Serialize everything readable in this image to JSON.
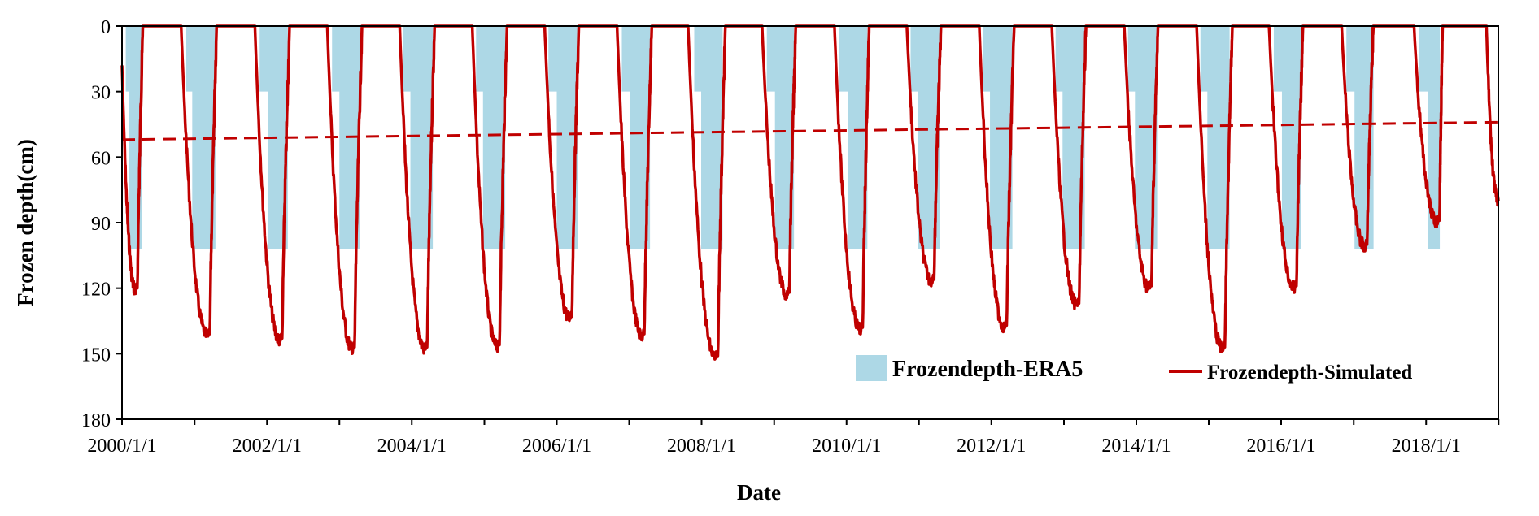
{
  "chart_data": {
    "type": "area",
    "title": "",
    "xlabel": "Date",
    "ylabel": "Frozen depth(cm)",
    "y_inverted": true,
    "ylim": [
      0,
      180
    ],
    "xlim": [
      "2000/1/1",
      "2018/12/31"
    ],
    "y_ticks": [
      0,
      30,
      60,
      90,
      120,
      150,
      180
    ],
    "x_ticks": [
      "2000/1/1",
      "2002/1/1",
      "2004/1/1",
      "2006/1/1",
      "2008/1/1",
      "2010/1/1",
      "2012/1/1",
      "2014/1/1",
      "2016/1/1",
      "2018/1/1"
    ],
    "legend_position": "bottom-right",
    "colors": {
      "era5": "#add8e6",
      "simulated": "#c00000",
      "trend": "#c00000"
    },
    "series": [
      {
        "name": "Frozendepth-ERA5",
        "kind": "step-area",
        "points": [
          [
            "2000/1/1",
            0
          ],
          [
            "2000/1/20",
            30
          ],
          [
            "2000/2/5",
            102
          ],
          [
            "2000/4/10",
            102
          ],
          [
            "2000/4/11",
            0
          ],
          [
            "2000/11/1",
            0
          ],
          [
            "2000/11/20",
            30
          ],
          [
            "2000/12/20",
            102
          ],
          [
            "2001/4/15",
            102
          ],
          [
            "2001/4/16",
            0
          ],
          [
            "2001/11/1",
            0
          ],
          [
            "2001/11/25",
            30
          ],
          [
            "2002/1/5",
            102
          ],
          [
            "2002/4/15",
            102
          ],
          [
            "2002/4/16",
            0
          ],
          [
            "2002/11/1",
            0
          ],
          [
            "2002/11/25",
            30
          ],
          [
            "2003/1/1",
            102
          ],
          [
            "2003/4/15",
            102
          ],
          [
            "2003/4/16",
            0
          ],
          [
            "2003/11/1",
            0
          ],
          [
            "2003/11/20",
            30
          ],
          [
            "2003/12/25",
            102
          ],
          [
            "2004/4/15",
            102
          ],
          [
            "2004/4/16",
            0
          ],
          [
            "2004/11/1",
            0
          ],
          [
            "2004/11/20",
            30
          ],
          [
            "2004/12/25",
            102
          ],
          [
            "2005/4/15",
            102
          ],
          [
            "2005/4/16",
            0
          ],
          [
            "2005/11/1",
            0
          ],
          [
            "2005/11/20",
            30
          ],
          [
            "2006/1/1",
            102
          ],
          [
            "2006/4/15",
            102
          ],
          [
            "2006/4/16",
            0
          ],
          [
            "2006/11/1",
            0
          ],
          [
            "2006/11/25",
            30
          ],
          [
            "2007/1/5",
            102
          ],
          [
            "2007/4/15",
            102
          ],
          [
            "2007/4/16",
            0
          ],
          [
            "2007/11/1",
            0
          ],
          [
            "2007/11/25",
            30
          ],
          [
            "2007/12/30",
            102
          ],
          [
            "2008/4/15",
            102
          ],
          [
            "2008/4/16",
            0
          ],
          [
            "2008/11/1",
            0
          ],
          [
            "2008/11/25",
            30
          ],
          [
            "2009/1/5",
            102
          ],
          [
            "2009/4/10",
            102
          ],
          [
            "2009/4/11",
            0
          ],
          [
            "2009/11/1",
            0
          ],
          [
            "2009/11/25",
            30
          ],
          [
            "2010/1/10",
            102
          ],
          [
            "2010/4/15",
            102
          ],
          [
            "2010/4/16",
            0
          ],
          [
            "2010/11/1",
            0
          ],
          [
            "2010/11/20",
            30
          ],
          [
            "2010/12/25",
            102
          ],
          [
            "2011/4/15",
            102
          ],
          [
            "2011/4/16",
            0
          ],
          [
            "2011/11/1",
            0
          ],
          [
            "2011/11/20",
            30
          ],
          [
            "2011/12/25",
            102
          ],
          [
            "2012/4/15",
            102
          ],
          [
            "2012/4/16",
            0
          ],
          [
            "2012/11/1",
            0
          ],
          [
            "2012/11/20",
            30
          ],
          [
            "2012/12/25",
            102
          ],
          [
            "2013/4/15",
            102
          ],
          [
            "2013/4/16",
            0
          ],
          [
            "2013/11/1",
            0
          ],
          [
            "2013/11/20",
            30
          ],
          [
            "2013/12/25",
            102
          ],
          [
            "2014/4/15",
            102
          ],
          [
            "2014/4/16",
            0
          ],
          [
            "2014/11/1",
            0
          ],
          [
            "2014/11/20",
            30
          ],
          [
            "2014/12/25",
            102
          ],
          [
            "2015/4/15",
            102
          ],
          [
            "2015/4/16",
            0
          ],
          [
            "2015/11/1",
            0
          ],
          [
            "2015/11/25",
            30
          ],
          [
            "2016/1/5",
            102
          ],
          [
            "2016/4/10",
            102
          ],
          [
            "2016/4/11",
            0
          ],
          [
            "2016/11/1",
            0
          ],
          [
            "2016/11/25",
            30
          ],
          [
            "2017/1/5",
            102
          ],
          [
            "2017/4/10",
            102
          ],
          [
            "2017/4/11",
            0
          ],
          [
            "2017/11/1",
            0
          ],
          [
            "2017/11/25",
            30
          ],
          [
            "2018/1/10",
            102
          ],
          [
            "2018/3/10",
            102
          ],
          [
            "2018/3/11",
            0
          ],
          [
            "2018/12/31",
            0
          ]
        ]
      },
      {
        "name": "Frozendepth-Simulated",
        "kind": "line",
        "seasons": [
          {
            "start": "2000/1/1",
            "start_depth": 18,
            "peak": "2000/3/10",
            "max": 121,
            "end": "2000/4/15"
          },
          {
            "start": "2000/10/25",
            "peak": "2001/3/10",
            "max": 142,
            "end": "2001/4/22"
          },
          {
            "start": "2001/11/1",
            "peak": "2002/3/10",
            "max": 144,
            "end": "2002/4/25"
          },
          {
            "start": "2002/11/1",
            "peak": "2003/3/10",
            "max": 148,
            "end": "2003/4/25"
          },
          {
            "start": "2003/11/1",
            "peak": "2004/3/10",
            "max": 148,
            "end": "2004/4/25"
          },
          {
            "start": "2004/11/1",
            "peak": "2005/3/10",
            "max": 147,
            "end": "2005/4/25"
          },
          {
            "start": "2005/11/1",
            "peak": "2006/3/10",
            "max": 134,
            "end": "2006/4/22"
          },
          {
            "start": "2006/11/1",
            "peak": "2007/3/10",
            "max": 142,
            "end": "2007/4/25"
          },
          {
            "start": "2007/10/25",
            "peak": "2008/3/15",
            "max": 152,
            "end": "2008/4/30"
          },
          {
            "start": "2008/11/1",
            "peak": "2009/3/10",
            "max": 123,
            "end": "2009/4/20"
          },
          {
            "start": "2009/11/1",
            "peak": "2010/3/15",
            "max": 139,
            "end": "2010/4/25"
          },
          {
            "start": "2010/11/1",
            "peak": "2011/3/10",
            "max": 117,
            "end": "2011/4/22"
          },
          {
            "start": "2011/11/1",
            "peak": "2012/3/10",
            "max": 138,
            "end": "2012/4/25"
          },
          {
            "start": "2012/11/1",
            "peak": "2013/3/10",
            "max": 128,
            "end": "2013/4/22"
          },
          {
            "start": "2013/11/1",
            "peak": "2014/3/10",
            "max": 120,
            "end": "2014/4/20"
          },
          {
            "start": "2014/11/1",
            "peak": "2015/3/15",
            "max": 148,
            "end": "2015/4/30"
          },
          {
            "start": "2015/11/1",
            "peak": "2016/3/10",
            "max": 120,
            "end": "2016/4/20"
          },
          {
            "start": "2016/11/1",
            "peak": "2017/3/1",
            "max": 101,
            "end": "2017/4/10"
          },
          {
            "start": "2017/11/1",
            "peak": "2018/3/1",
            "max": 90,
            "end": "2018/3/25"
          },
          {
            "start": "2018/11/1",
            "end_depth": 80,
            "end": "2018/12/31"
          }
        ]
      },
      {
        "name": "",
        "kind": "trend",
        "dashed": true,
        "points": [
          [
            "2000/1/1",
            52
          ],
          [
            "2018/12/31",
            44
          ]
        ]
      }
    ],
    "legend": [
      "Frozendepth-ERA5",
      "Frozendepth-Simulated"
    ]
  }
}
